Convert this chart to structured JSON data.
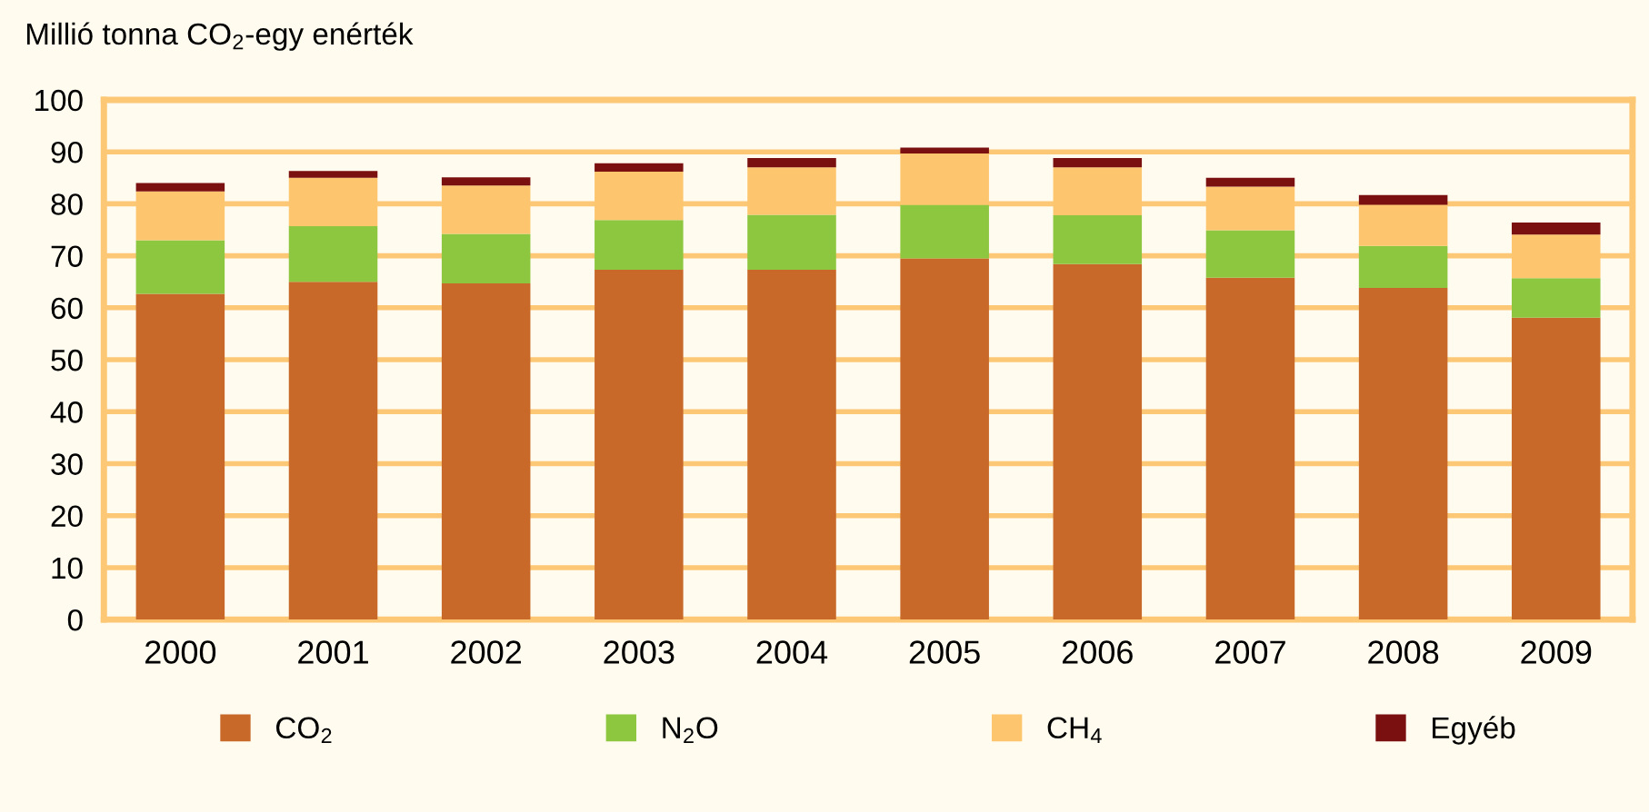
{
  "chart_data": {
    "type": "bar",
    "stacked": true,
    "ylabel": "Millió tonna CO$_{2}$-egy enérték",
    "categories": [
      "2000",
      "2001",
      "2002",
      "2003",
      "2004",
      "2005",
      "2006",
      "2007",
      "2008",
      "2009"
    ],
    "series": [
      {
        "name": "CO$_{2}$",
        "color": "#c8692a",
        "values": [
          62.7,
          65.0,
          64.7,
          67.3,
          67.3,
          69.5,
          68.4,
          65.8,
          63.8,
          58.1
        ]
      },
      {
        "name": "N$_{2}$O",
        "color": "#8dc63f",
        "values": [
          10.3,
          10.7,
          9.5,
          9.6,
          10.6,
          10.3,
          9.4,
          9.1,
          8.1,
          7.6
        ]
      },
      {
        "name": "CH$_{4}$",
        "color": "#fdc66e",
        "values": [
          9.4,
          9.3,
          9.3,
          9.3,
          9.1,
          9.9,
          9.2,
          8.4,
          7.9,
          8.4
        ]
      },
      {
        "name": "Egyéb",
        "color": "#7b1010",
        "values": [
          1.6,
          1.3,
          1.6,
          1.6,
          1.8,
          1.1,
          1.8,
          1.7,
          1.9,
          2.3
        ]
      }
    ],
    "ylim": [
      0,
      100
    ],
    "yticks": [
      0,
      10,
      20,
      30,
      40,
      50,
      60,
      70,
      80,
      90,
      100
    ],
    "grid": "y",
    "legend": "bottom"
  }
}
